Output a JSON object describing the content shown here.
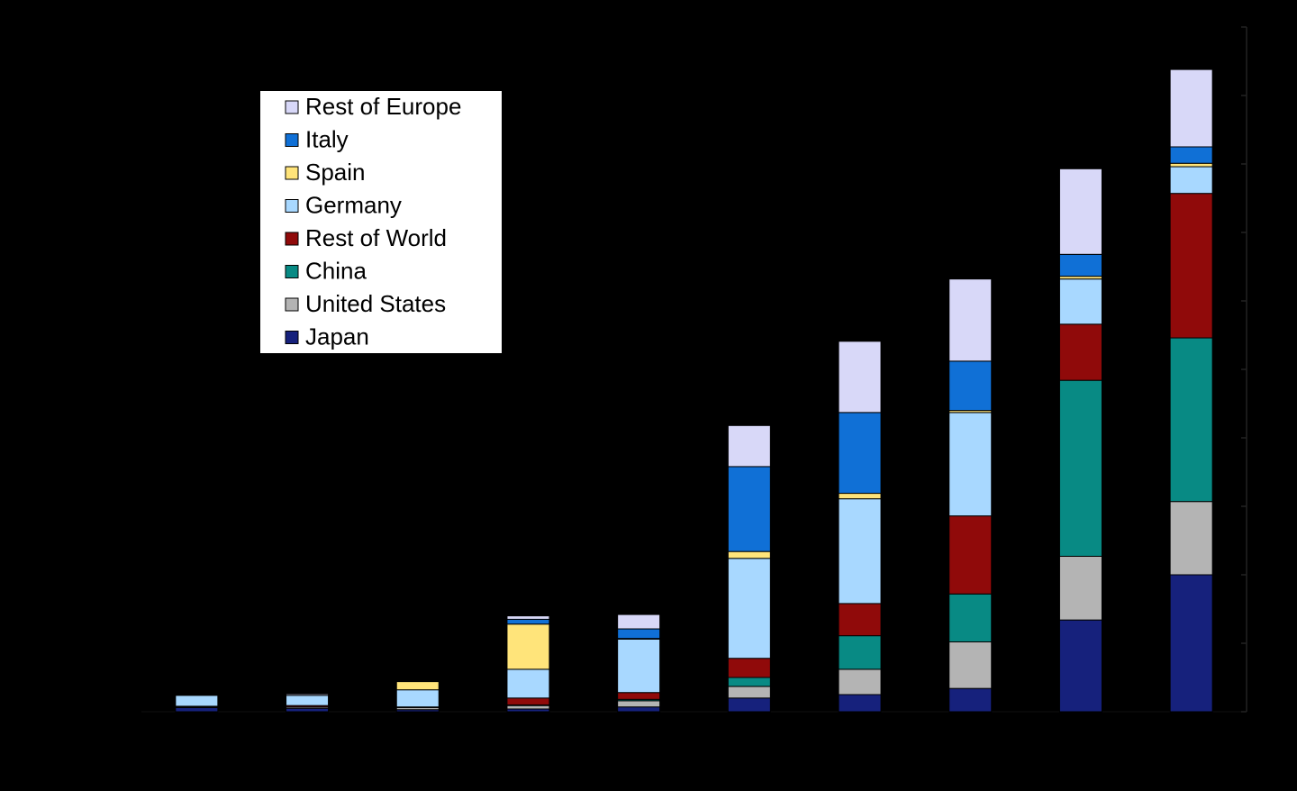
{
  "chart_data": {
    "type": "stacked-bar",
    "categories": [
      null,
      null,
      null,
      null,
      null,
      null,
      null,
      null,
      null,
      null
    ],
    "ylim": [
      0,
      10
    ],
    "yticks": [
      0,
      1,
      2,
      3,
      4,
      5,
      6,
      7,
      8,
      9,
      10
    ],
    "legend": "upper-left",
    "series": [
      {
        "name": "Japan",
        "color": "#16217c",
        "values": [
          0.06,
          0.05,
          0.03,
          0.04,
          0.07,
          0.2,
          0.25,
          0.34,
          1.34,
          2.0
        ]
      },
      {
        "name": "United States",
        "color": "#b4b4b4",
        "values": [
          0.01,
          0.02,
          0.03,
          0.05,
          0.09,
          0.17,
          0.37,
          0.68,
          0.93,
          1.07
        ]
      },
      {
        "name": "China",
        "color": "#088a84",
        "values": [
          0,
          0,
          0,
          0.01,
          0.02,
          0.13,
          0.49,
          0.7,
          2.57,
          2.39
        ]
      },
      {
        "name": "Rest of World",
        "color": "#900a0a",
        "values": [
          0.01,
          0.02,
          0.01,
          0.1,
          0.1,
          0.28,
          0.47,
          1.14,
          0.82,
          2.11
        ]
      },
      {
        "name": "Germany",
        "color": "#a8d8ff",
        "values": [
          0.16,
          0.15,
          0.25,
          0.42,
          0.78,
          1.46,
          1.53,
          1.51,
          0.66,
          0.39
        ]
      },
      {
        "name": "Spain",
        "color": "#ffe47a",
        "values": [
          0,
          0,
          0.12,
          0.66,
          0.01,
          0.1,
          0.08,
          0.03,
          0.04,
          0.05
        ]
      },
      {
        "name": "Italy",
        "color": "#1070d6",
        "values": [
          0,
          0,
          0,
          0.07,
          0.14,
          1.24,
          1.18,
          0.72,
          0.32,
          0.24
        ]
      },
      {
        "name": "Rest of Europe",
        "color": "#d8d8f8",
        "values": [
          0.01,
          0.02,
          0.01,
          0.05,
          0.21,
          0.6,
          1.04,
          1.2,
          1.25,
          1.13
        ]
      }
    ]
  }
}
